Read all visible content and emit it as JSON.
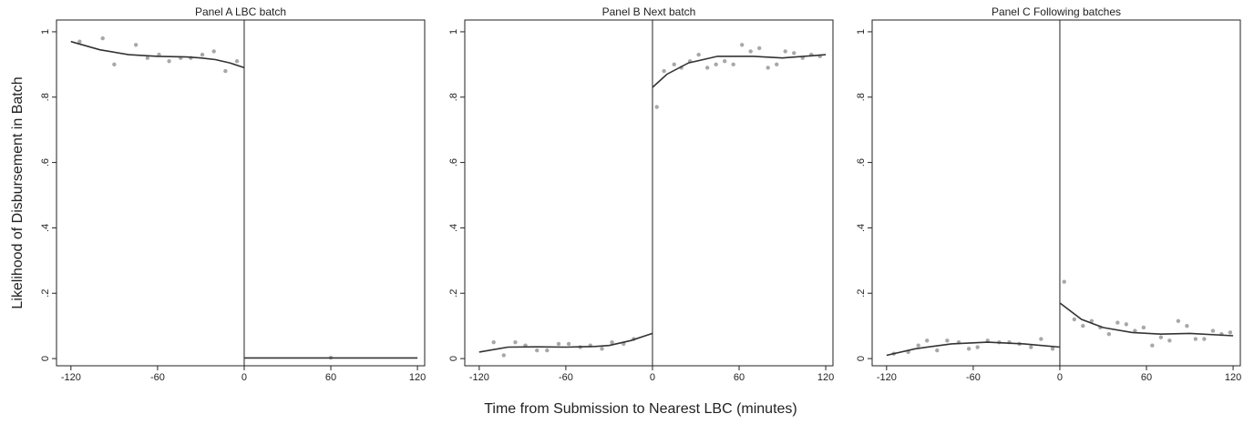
{
  "chart_data": [
    {
      "type": "scatter",
      "title": "Panel A  LBC batch",
      "ylabel": "Likelihood of Disbursement in Batch",
      "xlim": [
        -130,
        125
      ],
      "ylim": [
        -0.022,
        1.036
      ],
      "xticks": [
        -120,
        -60,
        0,
        60,
        120
      ],
      "yticks": [
        {
          "value": 0,
          "label": "0"
        },
        {
          "value": 0.2,
          "label": ".2"
        },
        {
          "value": 0.4,
          "label": ".4"
        },
        {
          "value": 0.6,
          "label": ".6"
        },
        {
          "value": 0.8,
          "label": ".8"
        },
        {
          "value": 1,
          "label": "1"
        }
      ],
      "cutoff": 0,
      "series": [
        {
          "type": "scatter",
          "color": "#a8a8a8",
          "x": [
            -114,
            -98,
            -90,
            -75,
            -67,
            -59,
            -52,
            -44,
            -37,
            -29,
            -21,
            -13,
            -5,
            60
          ],
          "values": [
            0.97,
            0.98,
            0.9,
            0.96,
            0.92,
            0.93,
            0.91,
            0.92,
            0.92,
            0.93,
            0.94,
            0.88,
            0.91,
            0.003
          ]
        },
        {
          "type": "line",
          "color": "#333333",
          "x": [
            -120,
            -100,
            -80,
            -60,
            -40,
            -30,
            -20,
            -10,
            0
          ],
          "values": [
            0.97,
            0.945,
            0.93,
            0.925,
            0.923,
            0.92,
            0.915,
            0.905,
            0.89
          ]
        },
        {
          "type": "line",
          "color": "#333333",
          "x": [
            0,
            60,
            120
          ],
          "values": [
            0.002,
            0.002,
            0.002
          ]
        }
      ]
    },
    {
      "type": "scatter",
      "title": "Panel B  Next batch",
      "xlabel": "Time from Submission to Nearest LBC (minutes)",
      "xlim": [
        -130,
        125
      ],
      "ylim": [
        -0.022,
        1.036
      ],
      "xticks": [
        -120,
        -60,
        0,
        60,
        120
      ],
      "yticks": [
        {
          "value": 0,
          "label": "0"
        },
        {
          "value": 0.2,
          "label": ".2"
        },
        {
          "value": 0.4,
          "label": ".4"
        },
        {
          "value": 0.6,
          "label": ".6"
        },
        {
          "value": 0.8,
          "label": ".8"
        },
        {
          "value": 1,
          "label": "1"
        }
      ],
      "cutoff": 0,
      "series": [
        {
          "type": "scatter",
          "color": "#a8a8a8",
          "x": [
            -110,
            -103,
            -95,
            -88,
            -80,
            -73,
            -65,
            -58,
            -50,
            -43,
            -35,
            -28,
            -20,
            -13,
            3,
            8,
            15,
            20,
            26,
            32,
            38,
            44,
            50,
            56,
            62,
            68,
            74,
            80,
            86,
            92,
            98,
            104,
            110,
            116
          ],
          "values": [
            0.05,
            0.01,
            0.05,
            0.04,
            0.025,
            0.025,
            0.045,
            0.045,
            0.035,
            0.04,
            0.03,
            0.05,
            0.045,
            0.06,
            0.77,
            0.88,
            0.9,
            0.89,
            0.91,
            0.93,
            0.89,
            0.9,
            0.91,
            0.9,
            0.96,
            0.94,
            0.95,
            0.89,
            0.9,
            0.94,
            0.935,
            0.92,
            0.93,
            0.925
          ]
        },
        {
          "type": "line",
          "color": "#333333",
          "x": [
            -120,
            -100,
            -80,
            -60,
            -40,
            -30,
            -15,
            0
          ],
          "values": [
            0.02,
            0.035,
            0.036,
            0.035,
            0.037,
            0.04,
            0.055,
            0.077
          ]
        },
        {
          "type": "line",
          "color": "#333333",
          "x": [
            0,
            10,
            25,
            45,
            70,
            90,
            120
          ],
          "values": [
            0.83,
            0.87,
            0.905,
            0.925,
            0.925,
            0.92,
            0.93
          ]
        }
      ]
    },
    {
      "type": "scatter",
      "title": "Panel C  Following batches",
      "xlim": [
        -130,
        125
      ],
      "ylim": [
        -0.022,
        1.036
      ],
      "xticks": [
        -120,
        -60,
        0,
        60,
        120
      ],
      "yticks": [
        {
          "value": 0,
          "label": "0"
        },
        {
          "value": 0.2,
          "label": ".2"
        },
        {
          "value": 0.4,
          "label": ".4"
        },
        {
          "value": 0.6,
          "label": ".6"
        },
        {
          "value": 0.8,
          "label": ".8"
        },
        {
          "value": 1,
          "label": "1"
        }
      ],
      "cutoff": 0,
      "series": [
        {
          "type": "scatter",
          "color": "#a8a8a8",
          "x": [
            -115,
            -105,
            -98,
            -92,
            -85,
            -78,
            -70,
            -63,
            -57,
            -50,
            -42,
            -35,
            -28,
            -20,
            -13,
            -5,
            3,
            10,
            16,
            22,
            28,
            34,
            40,
            46,
            52,
            58,
            64,
            70,
            76,
            82,
            88,
            94,
            100,
            106,
            112,
            118
          ],
          "values": [
            0.015,
            0.02,
            0.04,
            0.055,
            0.025,
            0.055,
            0.05,
            0.03,
            0.035,
            0.055,
            0.05,
            0.05,
            0.045,
            0.035,
            0.06,
            0.03,
            0.235,
            0.12,
            0.1,
            0.115,
            0.095,
            0.075,
            0.11,
            0.105,
            0.085,
            0.095,
            0.04,
            0.065,
            0.055,
            0.115,
            0.1,
            0.06,
            0.06,
            0.085,
            0.075,
            0.08
          ]
        },
        {
          "type": "line",
          "color": "#333333",
          "x": [
            -120,
            -100,
            -75,
            -50,
            -25,
            0
          ],
          "values": [
            0.01,
            0.03,
            0.045,
            0.05,
            0.045,
            0.035
          ]
        },
        {
          "type": "line",
          "color": "#333333",
          "x": [
            0,
            15,
            30,
            50,
            70,
            90,
            120
          ],
          "values": [
            0.17,
            0.12,
            0.095,
            0.08,
            0.075,
            0.077,
            0.07
          ]
        }
      ]
    }
  ]
}
